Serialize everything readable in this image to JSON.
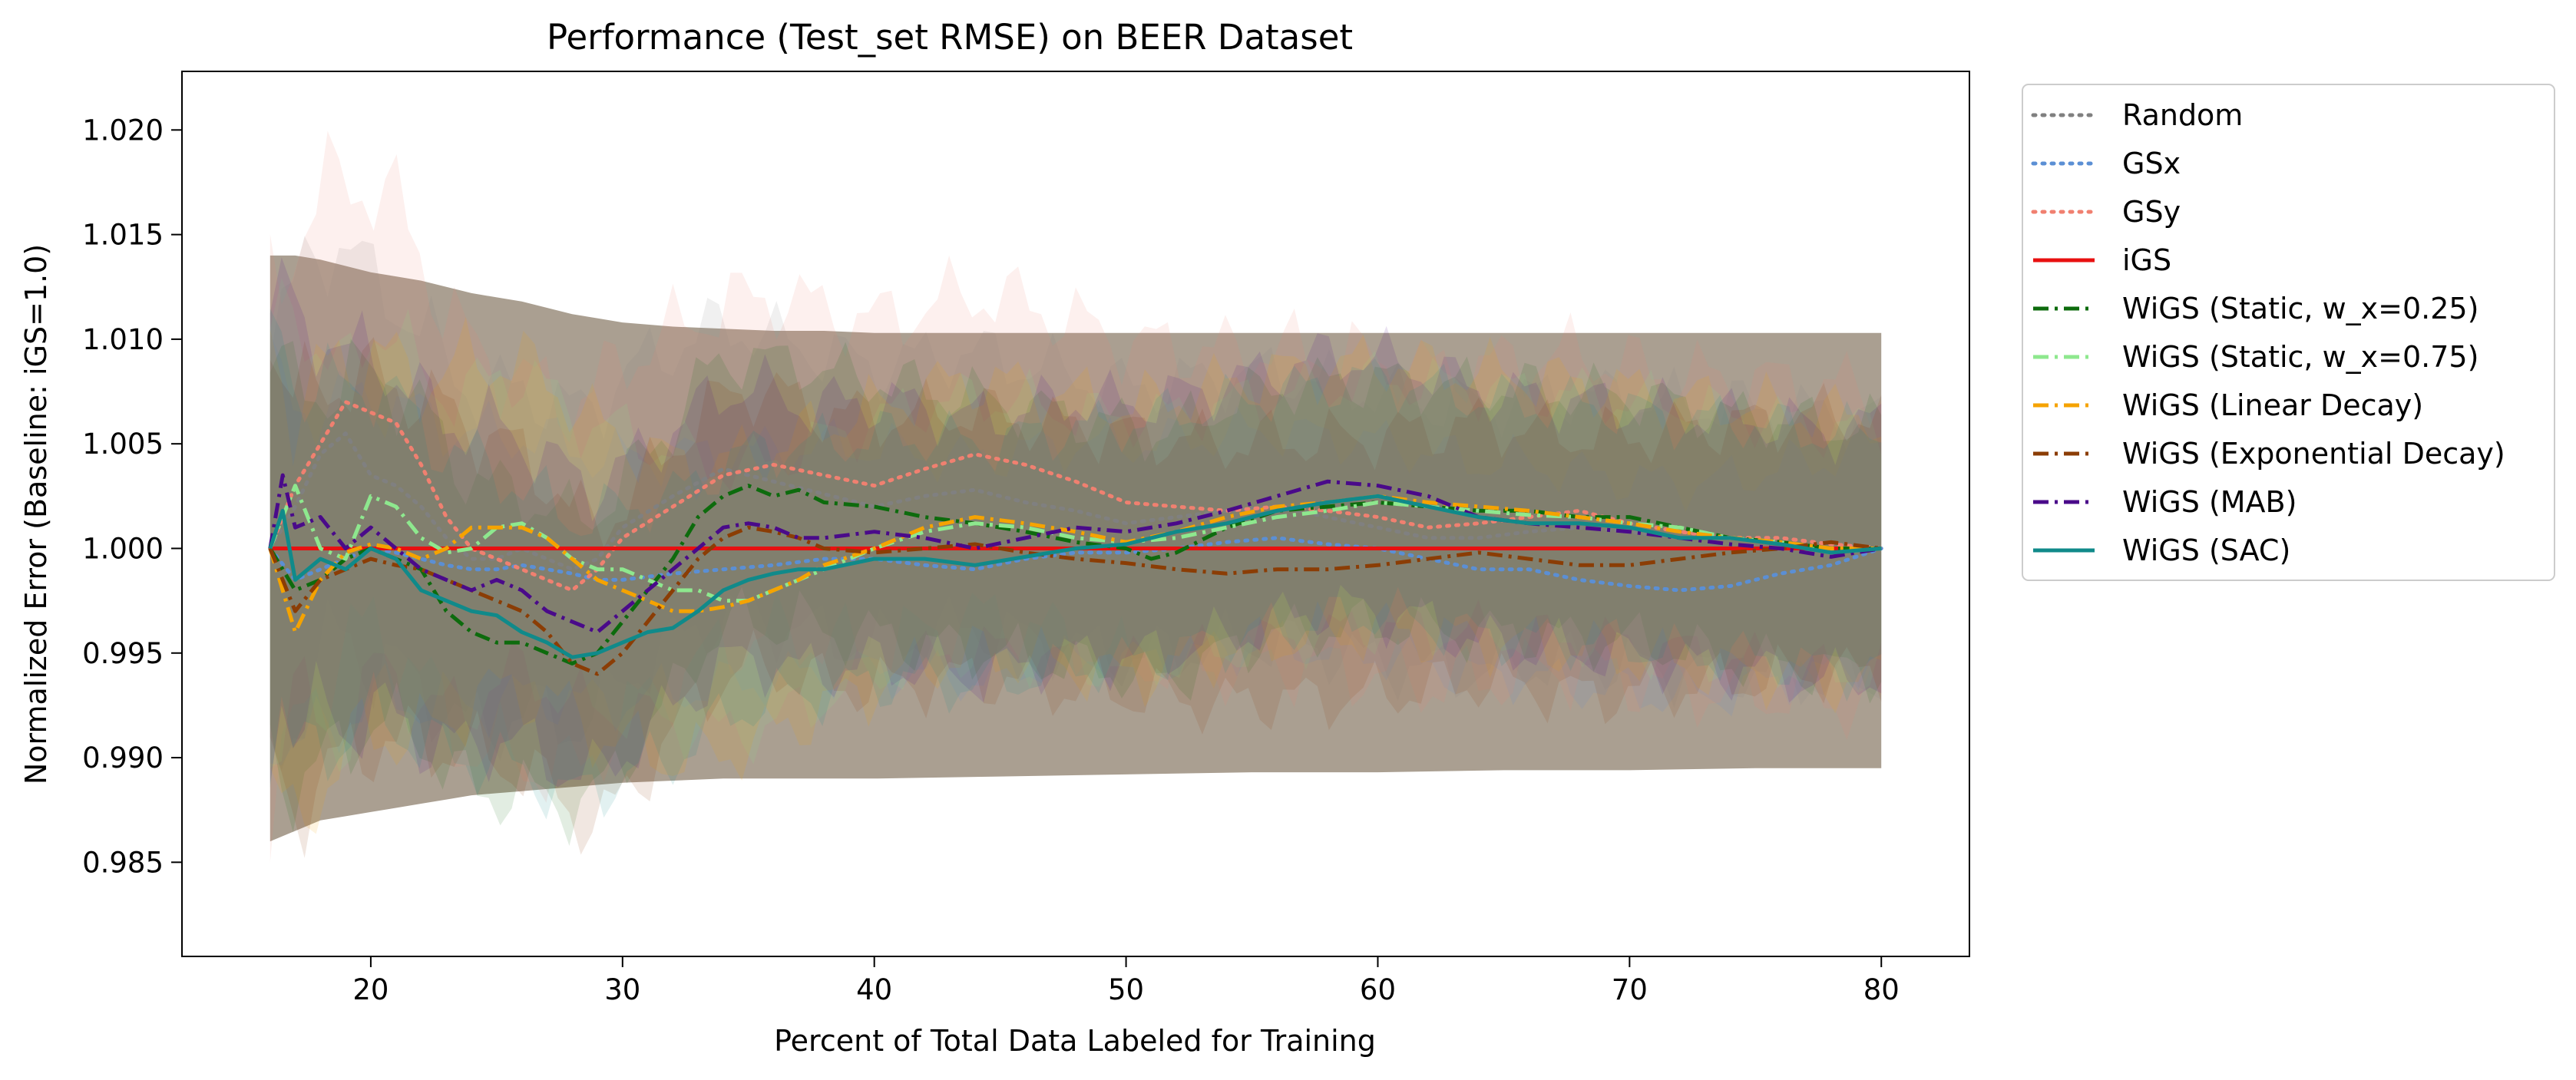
{
  "chart_data": {
    "type": "line",
    "title": "Performance (Test_set RMSE) on BEER Dataset",
    "xlabel": "Percent of Total Data Labeled for Training",
    "ylabel": "Normalized Error (Baseline: iGS=1.0)",
    "xlim": [
      12.5,
      83.5
    ],
    "ylim": [
      0.9805,
      1.0228
    ],
    "xticks": [
      20,
      30,
      40,
      50,
      60,
      70,
      80
    ],
    "yticks": [
      0.985,
      0.99,
      0.995,
      1.0,
      1.005,
      1.01,
      1.015,
      1.02
    ],
    "ytick_labels": [
      "0.985",
      "0.990",
      "0.995",
      "1.000",
      "1.005",
      "1.010",
      "1.015",
      "1.020"
    ],
    "grid": false,
    "legend_position": "outside-right",
    "band": {
      "x": [
        16,
        17,
        18,
        19,
        20,
        21,
        22,
        23,
        24,
        25,
        26,
        27,
        28,
        29,
        30,
        32,
        34,
        36,
        38,
        40,
        45,
        50,
        55,
        60,
        65,
        70,
        75,
        80
      ],
      "upper": [
        1.014,
        1.014,
        1.0138,
        1.0135,
        1.0132,
        1.013,
        1.0128,
        1.0125,
        1.0122,
        1.012,
        1.0118,
        1.0115,
        1.0112,
        1.011,
        1.0108,
        1.0106,
        1.0105,
        1.0104,
        1.0104,
        1.0103,
        1.0103,
        1.0103,
        1.0103,
        1.0103,
        1.0103,
        1.0103,
        1.0103,
        1.0103
      ],
      "lower": [
        0.986,
        0.9865,
        0.987,
        0.9872,
        0.9874,
        0.9876,
        0.9878,
        0.988,
        0.9882,
        0.9883,
        0.9884,
        0.9885,
        0.9886,
        0.9887,
        0.9888,
        0.9889,
        0.989,
        0.989,
        0.989,
        0.989,
        0.9891,
        0.9892,
        0.9893,
        0.9893,
        0.9894,
        0.9894,
        0.9895,
        0.9895
      ],
      "color": "#a59a8b"
    },
    "series": [
      {
        "name": "Random",
        "color": "#808080",
        "dash": "dotted",
        "spread": 0.0085,
        "x": [
          16,
          17,
          18,
          19,
          20,
          21,
          22,
          23,
          24,
          25,
          26,
          27,
          28,
          29,
          30,
          32,
          34,
          36,
          38,
          40,
          42,
          44,
          46,
          48,
          50,
          52,
          54,
          56,
          58,
          60,
          62,
          64,
          66,
          68,
          70,
          72,
          74,
          76,
          78,
          80
        ],
        "y": [
          1.0,
          1.002,
          1.0045,
          1.0055,
          1.0035,
          1.003,
          1.002,
          1.0005,
          0.9995,
          0.9995,
          1.0,
          0.9995,
          0.999,
          0.9995,
          1.001,
          1.0025,
          1.0038,
          1.0032,
          1.0026,
          1.002,
          1.0025,
          1.0028,
          1.0022,
          1.0018,
          1.0012,
          1.0015,
          1.0018,
          1.002,
          1.0015,
          1.001,
          1.0005,
          1.0005,
          1.0008,
          1.001,
          1.0008,
          1.0005,
          1.0005,
          1.0003,
          1.0,
          1.0
        ]
      },
      {
        "name": "GSx",
        "color": "#5b8fd4",
        "dash": "dotted",
        "spread": 0.0068,
        "x": [
          16,
          17,
          18,
          19,
          20,
          21,
          22,
          23,
          24,
          25,
          26,
          27,
          28,
          29,
          30,
          32,
          34,
          36,
          38,
          40,
          42,
          44,
          46,
          48,
          50,
          52,
          54,
          56,
          58,
          60,
          62,
          64,
          66,
          68,
          70,
          72,
          74,
          76,
          78,
          80
        ],
        "y": [
          1.0,
          0.9985,
          0.999,
          0.9995,
          1.0,
          0.9998,
          0.9995,
          0.9992,
          0.999,
          0.999,
          0.9992,
          0.999,
          0.9988,
          0.9985,
          0.9985,
          0.9988,
          0.999,
          0.9992,
          0.9995,
          0.9995,
          0.9992,
          0.999,
          0.9995,
          0.9998,
          0.9998,
          1.0,
          1.0003,
          1.0005,
          1.0002,
          1.0,
          0.9995,
          0.999,
          0.999,
          0.9985,
          0.9982,
          0.998,
          0.9982,
          0.9988,
          0.9992,
          1.0
        ]
      },
      {
        "name": "GSy",
        "color": "#f08070",
        "dash": "dotted",
        "spread": 0.01,
        "x": [
          16,
          17,
          18,
          19,
          20,
          21,
          22,
          23,
          24,
          25,
          26,
          27,
          28,
          29,
          30,
          32,
          34,
          36,
          38,
          40,
          42,
          44,
          46,
          48,
          50,
          52,
          54,
          56,
          58,
          60,
          62,
          64,
          66,
          68,
          70,
          72,
          74,
          76,
          78,
          80
        ],
        "y": [
          1.0,
          1.003,
          1.005,
          1.007,
          1.0065,
          1.006,
          1.004,
          1.0015,
          1.0,
          0.9995,
          0.999,
          0.9985,
          0.998,
          0.999,
          1.0005,
          1.002,
          1.0035,
          1.004,
          1.0035,
          1.003,
          1.0038,
          1.0045,
          1.004,
          1.0032,
          1.0022,
          1.002,
          1.0018,
          1.002,
          1.0018,
          1.0015,
          1.001,
          1.0012,
          1.0015,
          1.0018,
          1.0012,
          1.0008,
          1.0005,
          1.0005,
          1.0002,
          1.0
        ]
      },
      {
        "name": "iGS",
        "color": "#e81010",
        "dash": "solid",
        "spread": 0,
        "x": [
          16,
          80
        ],
        "y": [
          1.0,
          1.0
        ]
      },
      {
        "name": "WiGS (Static, w_x=0.25)",
        "color": "#0d6b0d",
        "dash": "dashdot",
        "spread": 0.0078,
        "x": [
          16,
          17,
          18,
          19,
          20,
          21,
          22,
          23,
          24,
          25,
          26,
          27,
          28,
          29,
          30,
          31,
          32,
          33,
          34,
          35,
          36,
          37,
          38,
          40,
          42,
          44,
          46,
          48,
          50,
          51,
          52,
          54,
          56,
          58,
          60,
          62,
          64,
          66,
          68,
          70,
          72,
          74,
          76,
          78,
          80
        ],
        "y": [
          1.0,
          0.998,
          0.9985,
          0.9995,
          1.0,
          0.9995,
          0.999,
          0.997,
          0.996,
          0.9955,
          0.9955,
          0.995,
          0.9945,
          0.995,
          0.9965,
          0.998,
          0.9995,
          1.0015,
          1.0025,
          1.003,
          1.0025,
          1.0028,
          1.0022,
          1.002,
          1.0015,
          1.0012,
          1.0008,
          1.0003,
          1.0,
          0.9995,
          0.9998,
          1.001,
          1.0018,
          1.002,
          1.0022,
          1.002,
          1.0018,
          1.0018,
          1.0015,
          1.0015,
          1.001,
          1.0005,
          1.0003,
          1.0,
          1.0
        ]
      },
      {
        "name": "WiGS (Static, w_x=0.75)",
        "color": "#8ee88e",
        "dash": "dashdot",
        "spread": 0.0078,
        "x": [
          16,
          17,
          18,
          19,
          20,
          21,
          22,
          23,
          24,
          25,
          26,
          27,
          28,
          29,
          30,
          31,
          32,
          33,
          34,
          35,
          36,
          37,
          38,
          40,
          42,
          44,
          46,
          48,
          50,
          52,
          54,
          56,
          58,
          60,
          62,
          64,
          66,
          68,
          70,
          72,
          74,
          76,
          78,
          80
        ],
        "y": [
          1.0,
          1.003,
          1.0,
          0.9995,
          1.0025,
          1.002,
          1.0005,
          0.9998,
          1.0,
          1.001,
          1.0012,
          1.0005,
          0.9995,
          0.999,
          0.999,
          0.9985,
          0.998,
          0.998,
          0.9975,
          0.9975,
          0.998,
          0.9985,
          0.999,
          1.0,
          1.0008,
          1.0012,
          1.001,
          1.0005,
          1.0003,
          1.0005,
          1.001,
          1.0015,
          1.0018,
          1.0022,
          1.002,
          1.0018,
          1.0016,
          1.0015,
          1.0012,
          1.001,
          1.0005,
          1.0003,
          0.9998,
          1.0
        ]
      },
      {
        "name": "WiGS (Linear Decay)",
        "color": "#f5a300",
        "dash": "dashdot",
        "spread": 0.0085,
        "x": [
          16,
          17,
          18,
          19,
          20,
          21,
          22,
          23,
          24,
          25,
          26,
          27,
          28,
          29,
          30,
          31,
          32,
          33,
          34,
          35,
          36,
          37,
          38,
          40,
          42,
          44,
          46,
          48,
          50,
          52,
          54,
          56,
          58,
          60,
          62,
          64,
          66,
          68,
          70,
          72,
          74,
          76,
          78,
          80
        ],
        "y": [
          1.0,
          0.996,
          0.9985,
          0.9998,
          1.0002,
          1.0,
          0.9995,
          1.0,
          1.001,
          1.001,
          1.001,
          1.0005,
          0.9995,
          0.9985,
          0.998,
          0.9975,
          0.997,
          0.997,
          0.9972,
          0.9975,
          0.998,
          0.9985,
          0.9992,
          1.0,
          1.001,
          1.0015,
          1.0012,
          1.0008,
          1.0003,
          1.0008,
          1.0015,
          1.002,
          1.0022,
          1.0025,
          1.0022,
          1.002,
          1.0018,
          1.0015,
          1.0012,
          1.0008,
          1.0005,
          1.0003,
          1.0,
          1.0
        ]
      },
      {
        "name": "WiGS (Exponential Decay)",
        "color": "#8b3d05",
        "dash": "dashdot",
        "spread": 0.0082,
        "x": [
          16,
          17,
          18,
          19,
          20,
          21,
          22,
          23,
          24,
          25,
          26,
          27,
          28,
          29,
          30,
          31,
          32,
          33,
          34,
          35,
          36,
          37,
          38,
          40,
          42,
          44,
          46,
          48,
          50,
          52,
          54,
          56,
          58,
          60,
          62,
          64,
          66,
          68,
          70,
          72,
          74,
          76,
          78,
          80
        ],
        "y": [
          1.0,
          0.997,
          0.9985,
          0.999,
          0.9995,
          0.9992,
          0.999,
          0.9985,
          0.998,
          0.9975,
          0.997,
          0.996,
          0.9945,
          0.994,
          0.995,
          0.9965,
          0.998,
          0.9995,
          1.0005,
          1.001,
          1.0008,
          1.0005,
          1.0,
          0.9998,
          1.0,
          1.0002,
          0.9998,
          0.9995,
          0.9993,
          0.999,
          0.9988,
          0.999,
          0.999,
          0.9992,
          0.9995,
          0.9998,
          0.9995,
          0.9992,
          0.9992,
          0.9995,
          0.9998,
          1.0,
          1.0003,
          1.0
        ]
      },
      {
        "name": "WiGS (MAB)",
        "color": "#4a0a8a",
        "dash": "dashdot",
        "spread": 0.008,
        "x": [
          16,
          16.5,
          17,
          18,
          19,
          20,
          21,
          22,
          23,
          24,
          25,
          26,
          27,
          28,
          29,
          30,
          31,
          32,
          33,
          34,
          35,
          36,
          37,
          38,
          40,
          42,
          44,
          46,
          48,
          50,
          52,
          54,
          56,
          58,
          60,
          62,
          64,
          66,
          68,
          70,
          72,
          74,
          76,
          78,
          80
        ],
        "y": [
          1.0,
          1.0035,
          1.001,
          1.0015,
          1.0,
          1.001,
          1.0,
          0.999,
          0.9985,
          0.998,
          0.9985,
          0.998,
          0.997,
          0.9965,
          0.996,
          0.997,
          0.998,
          0.999,
          1.0,
          1.001,
          1.0012,
          1.001,
          1.0005,
          1.0005,
          1.0008,
          1.0005,
          1.0,
          1.0005,
          1.001,
          1.0008,
          1.0012,
          1.0018,
          1.0025,
          1.0032,
          1.003,
          1.0025,
          1.0015,
          1.0012,
          1.001,
          1.0008,
          1.0005,
          1.0002,
          1.0,
          0.9996,
          1.0
        ]
      },
      {
        "name": "WiGS (SAC)",
        "color": "#108a8a",
        "dash": "solid",
        "spread": 0.0075,
        "x": [
          16,
          16.5,
          17,
          18,
          19,
          20,
          21,
          22,
          23,
          24,
          25,
          26,
          27,
          28,
          29,
          30,
          31,
          32,
          33,
          34,
          35,
          36,
          37,
          38,
          40,
          42,
          44,
          46,
          48,
          50,
          52,
          54,
          56,
          58,
          60,
          62,
          64,
          66,
          68,
          70,
          72,
          74,
          76,
          78,
          80
        ],
        "y": [
          1.0,
          1.0018,
          0.9985,
          0.9995,
          0.999,
          1.0,
          0.9995,
          0.998,
          0.9975,
          0.997,
          0.9968,
          0.996,
          0.9955,
          0.9948,
          0.995,
          0.9955,
          0.996,
          0.9962,
          0.997,
          0.998,
          0.9985,
          0.9988,
          0.999,
          0.999,
          0.9995,
          0.9995,
          0.9992,
          0.9996,
          1.0,
          1.0002,
          1.0008,
          1.0012,
          1.0018,
          1.0022,
          1.0025,
          1.002,
          1.0015,
          1.0012,
          1.0012,
          1.001,
          1.0005,
          1.0005,
          1.0002,
          0.9998,
          1.0
        ]
      }
    ]
  }
}
